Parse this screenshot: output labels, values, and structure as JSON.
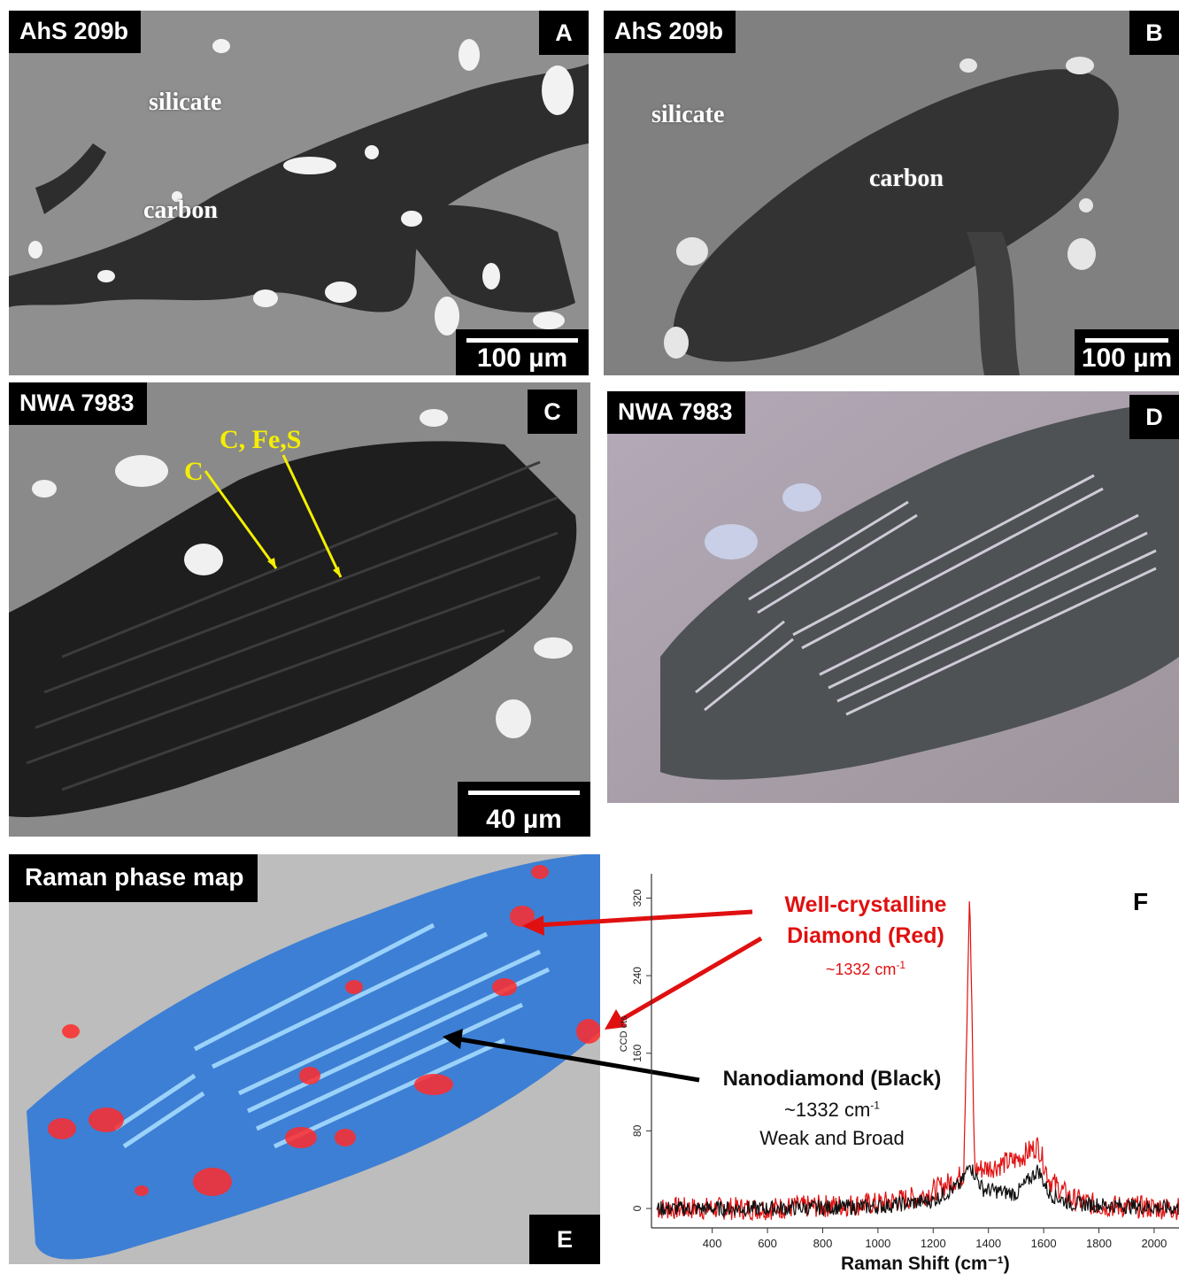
{
  "panels": {
    "a": {
      "sample": "AhS 209b",
      "letter": "A",
      "scale": "100 µm",
      "labels": {
        "silicate": "silicate",
        "carbon": "carbon"
      }
    },
    "b": {
      "sample": "AhS 209b",
      "letter": "B",
      "scale": "100 µm",
      "labels": {
        "silicate": "silicate",
        "carbon": "carbon"
      }
    },
    "c": {
      "sample": "NWA 7983",
      "letter": "C",
      "scale": "40 µm",
      "labels": {
        "c": "C",
        "cfes": "C, Fe,S"
      }
    },
    "d": {
      "sample": "NWA 7983",
      "letter": "D"
    },
    "e": {
      "title": "Raman phase map",
      "letter": "E"
    },
    "f": {
      "letter": "F",
      "annotations": {
        "red_line1": "Well-crystalline",
        "red_line2": "Diamond (Red)",
        "red_peak": "~1332 cm",
        "red_peak_sup": "-1",
        "black_line1": "Nanodiamond (Black)",
        "black_peak": "~1332 cm",
        "black_peak_sup": "-1",
        "black_line3": "Weak and Broad"
      }
    }
  },
  "chart_data": {
    "type": "line",
    "xlabel": "Raman Shift (cm⁻¹)",
    "ylabel": "CCD cts",
    "xlim": [
      180,
      2090
    ],
    "ylim": [
      -20,
      345
    ],
    "x_ticks": [
      "400",
      "600",
      "800",
      "1000",
      "1200",
      "1400",
      "1600",
      "1800",
      "2000"
    ],
    "y_ticks": [
      "0",
      "80",
      "160",
      "240",
      "320"
    ],
    "series": [
      {
        "name": "Diamond (Red)",
        "color": "#e01010",
        "x": [
          200,
          600,
          1000,
          1150,
          1250,
          1310,
          1332,
          1350,
          1400,
          1500,
          1580,
          1620,
          1700,
          1800,
          2090
        ],
        "y": [
          0,
          0,
          5,
          12,
          25,
          35,
          330,
          40,
          42,
          50,
          65,
          30,
          10,
          3,
          0
        ]
      },
      {
        "name": "Nanodiamond (Black)",
        "color": "#111111",
        "x": [
          200,
          600,
          1000,
          1200,
          1300,
          1332,
          1380,
          1500,
          1580,
          1620,
          1700,
          2090
        ],
        "y": [
          0,
          0,
          2,
          8,
          25,
          45,
          20,
          15,
          40,
          15,
          5,
          0
        ]
      }
    ]
  }
}
